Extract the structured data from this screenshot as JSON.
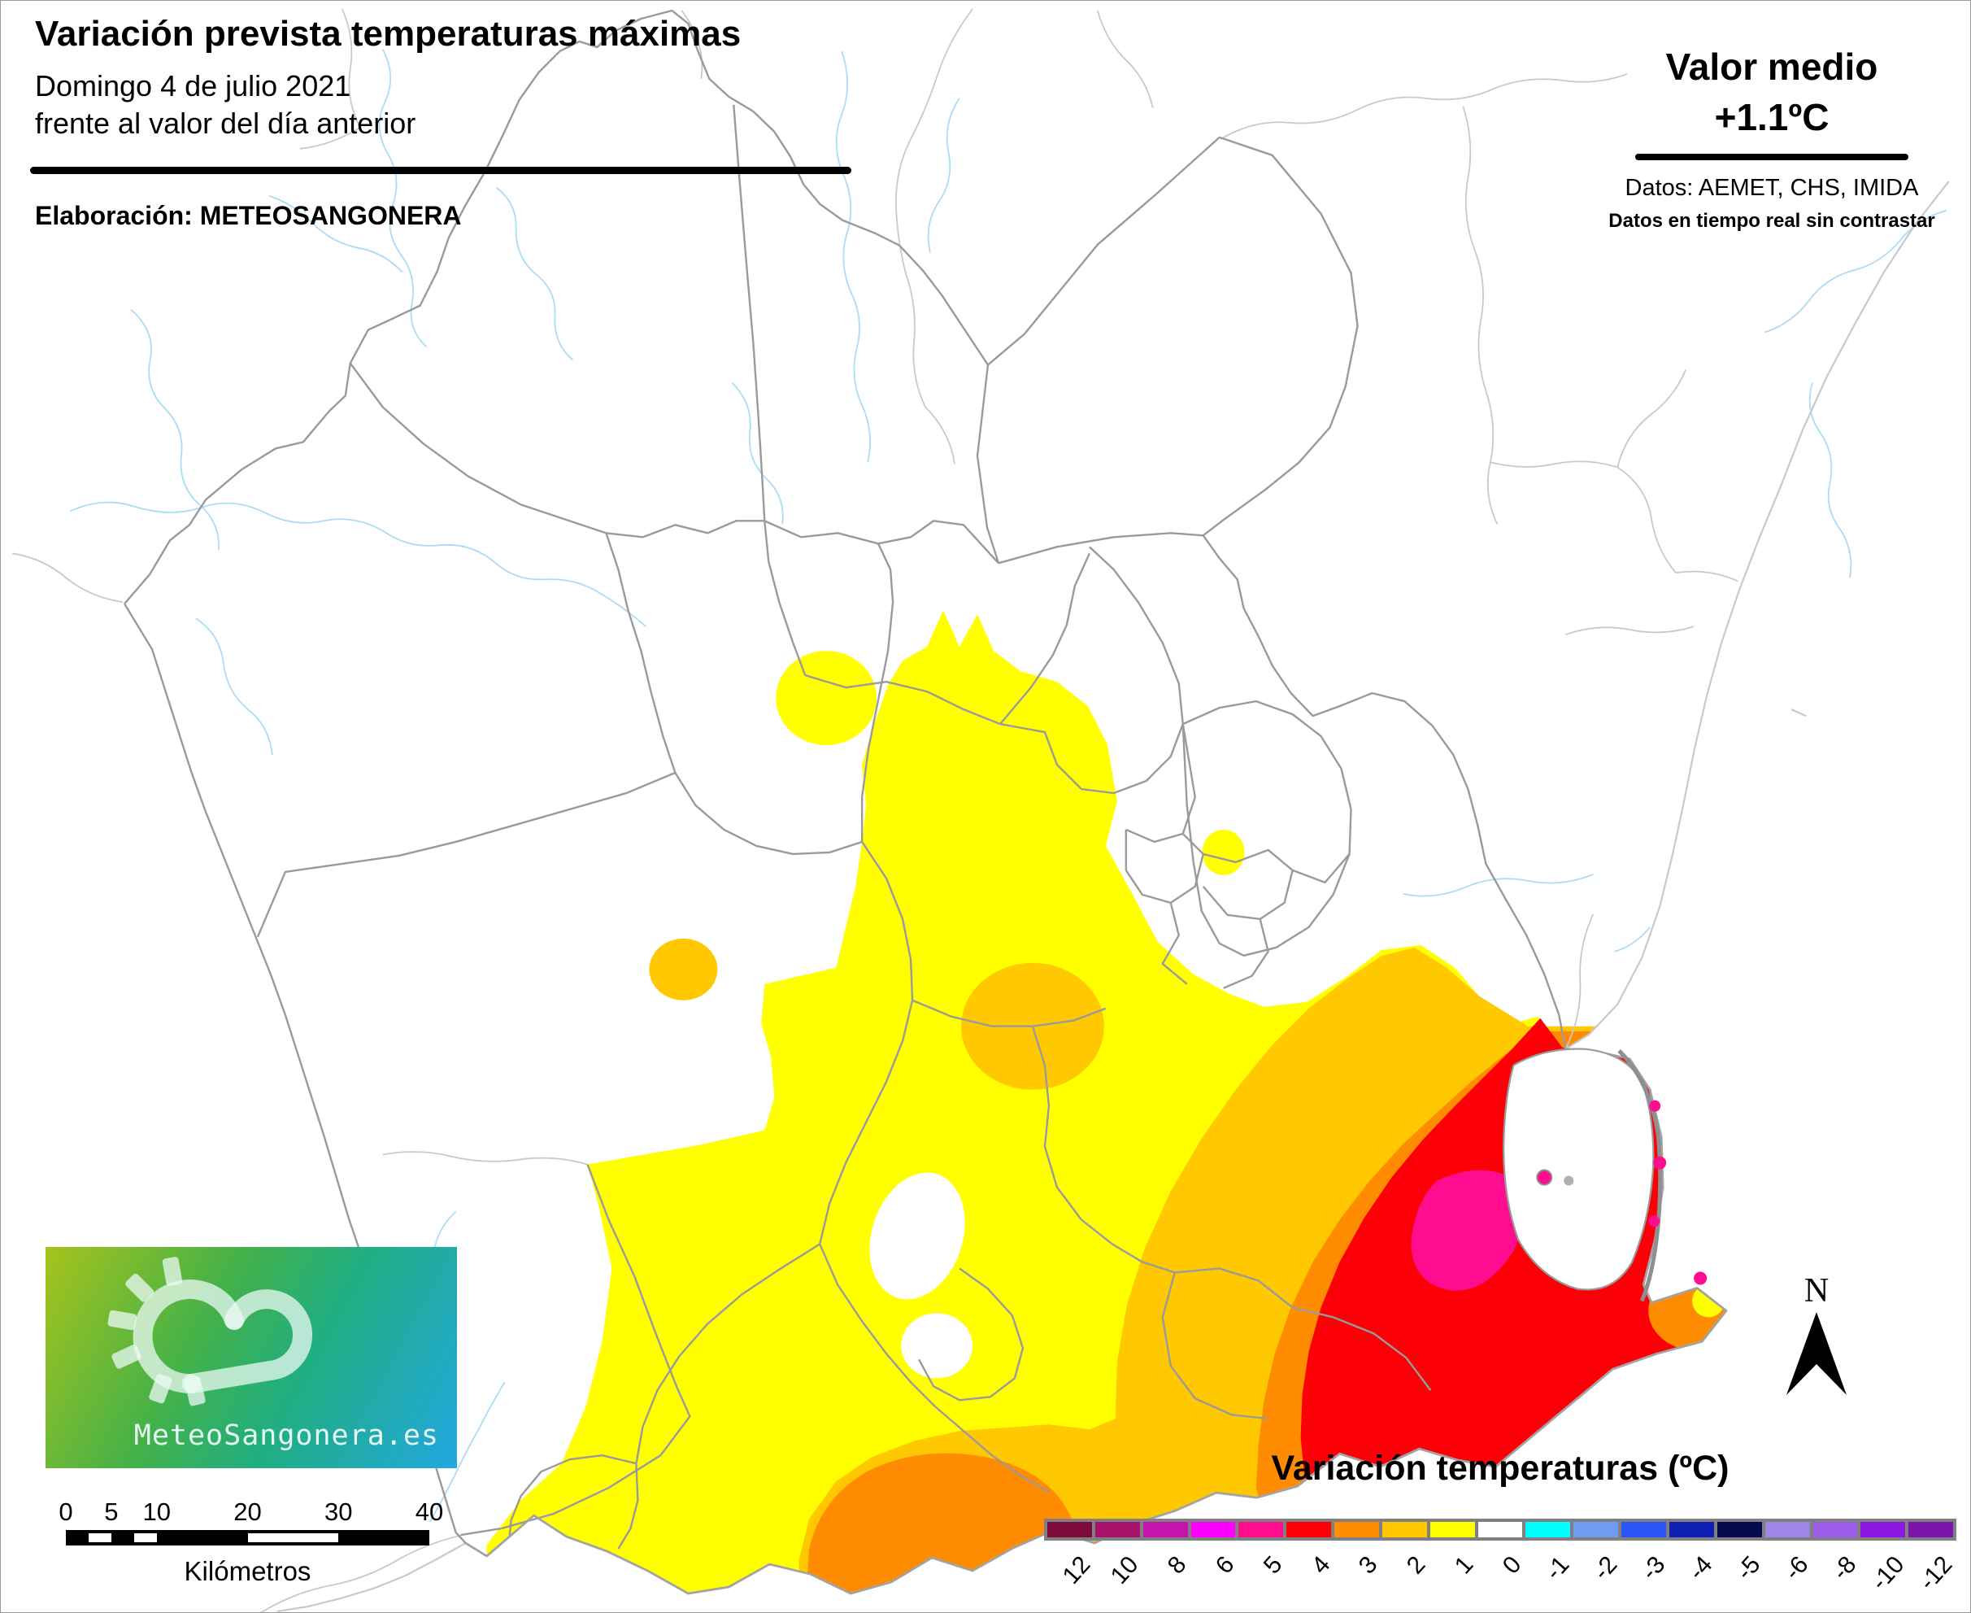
{
  "header": {
    "title": "Variación prevista temperaturas máximas",
    "subtitle_line1": "Domingo 4 de julio 2021",
    "subtitle_line2": "frente al valor del día anterior",
    "elaboration": "Elaboración: METEOSANGONERA"
  },
  "stats": {
    "label": "Valor medio",
    "value": "+1.1ºC",
    "sources": "Datos: AEMET, CHS, IMIDA",
    "disclaimer": "Datos en tiempo real sin contrastar"
  },
  "legend": {
    "title": "Variación temperaturas (ºC)",
    "entries": [
      {
        "label": "12",
        "color": "#7D0B3C"
      },
      {
        "label": "10",
        "color": "#A8126B"
      },
      {
        "label": "8",
        "color": "#C414AD"
      },
      {
        "label": "6",
        "color": "#FB00FF"
      },
      {
        "label": "5",
        "color": "#FF0D8E"
      },
      {
        "label": "4",
        "color": "#FB0007"
      },
      {
        "label": "3",
        "color": "#FF8C00"
      },
      {
        "label": "2",
        "color": "#FFC800"
      },
      {
        "label": "1",
        "color": "#FFFF00"
      },
      {
        "label": "0",
        "color": "#FFFFFF"
      },
      {
        "label": "-1",
        "color": "#00FFFF"
      },
      {
        "label": "-2",
        "color": "#6F9BF2"
      },
      {
        "label": "-3",
        "color": "#2A55F2"
      },
      {
        "label": "-4",
        "color": "#101FB4"
      },
      {
        "label": "-5",
        "color": "#050A4E"
      },
      {
        "label": "-6",
        "color": "#9F85E8"
      },
      {
        "label": "-8",
        "color": "#9D5CE9"
      },
      {
        "label": "-10",
        "color": "#8B17E0"
      },
      {
        "label": "-12",
        "color": "#7D14AB"
      }
    ]
  },
  "scalebar": {
    "ticks": [
      "0",
      "5",
      "10",
      "20",
      "30",
      "40"
    ],
    "unit": "Kilómetros"
  },
  "compass": {
    "label": "N"
  },
  "logo": {
    "text": "MeteoSangonera.es"
  },
  "map": {
    "palette": {
      "yellow": "#FFFF00",
      "amber": "#FFC800",
      "orange": "#FF8C00",
      "red": "#FB0007",
      "pink": "#FF0D8E",
      "boundary": "#9A9A9A",
      "neighbor": "#C9C9C9",
      "coast": "#A3A3A3",
      "river": "#ABDCF6",
      "sea": "#FFFFFF"
    }
  }
}
